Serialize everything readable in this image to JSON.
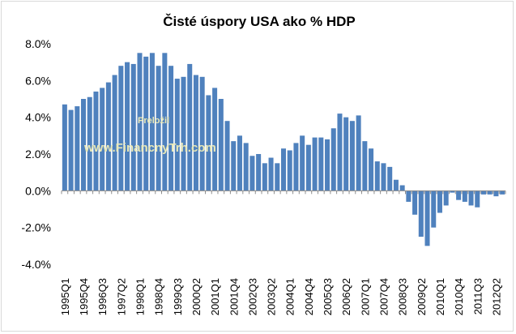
{
  "chart_data": {
    "type": "bar",
    "title": "Čisté úspory USA ako % HDP",
    "xlabel": "",
    "ylabel": "",
    "ylim": [
      -4,
      8
    ],
    "yticks": [
      "8.0%",
      "6.0%",
      "4.0%",
      "2.0%",
      "0.0%",
      "-2.0%",
      "-4.0%"
    ],
    "grid": false,
    "bar_color": "#4f81bd",
    "categories": [
      "1995Q1",
      "1995Q2",
      "1995Q3",
      "1995Q4",
      "1996Q1",
      "1996Q2",
      "1996Q3",
      "1996Q4",
      "1997Q1",
      "1997Q2",
      "1997Q3",
      "1997Q4",
      "1998Q1",
      "1998Q2",
      "1998Q3",
      "1998Q4",
      "1999Q1",
      "1999Q2",
      "1999Q3",
      "1999Q4",
      "2000Q1",
      "2000Q2",
      "2000Q3",
      "2000Q4",
      "2001Q1",
      "2001Q2",
      "2001Q3",
      "2001Q4",
      "2002Q1",
      "2002Q2",
      "2002Q3",
      "2002Q4",
      "2003Q1",
      "2003Q2",
      "2003Q3",
      "2003Q4",
      "2004Q1",
      "2004Q2",
      "2004Q3",
      "2004Q4",
      "2005Q1",
      "2005Q2",
      "2005Q3",
      "2005Q4",
      "2006Q1",
      "2006Q2",
      "2006Q3",
      "2006Q4",
      "2007Q1",
      "2007Q2",
      "2007Q3",
      "2007Q4",
      "2008Q1",
      "2008Q2",
      "2008Q3",
      "2008Q4",
      "2009Q1",
      "2009Q2",
      "2009Q3",
      "2009Q4",
      "2010Q1",
      "2010Q2",
      "2010Q3",
      "2010Q4",
      "2011Q1",
      "2011Q2",
      "2011Q3",
      "2011Q4",
      "2012Q1",
      "2012Q2",
      "2012Q3"
    ],
    "visible_tick_labels": [
      "1995Q1",
      "1995Q4",
      "1996Q3",
      "1997Q2",
      "1998Q1",
      "1998Q4",
      "1999Q3",
      "2000Q2",
      "2001Q1",
      "2001Q4",
      "2002Q3",
      "2003Q2",
      "2004Q1",
      "2004Q4",
      "2005Q3",
      "2006Q2",
      "2007Q1",
      "2007Q4",
      "2008Q3",
      "2009Q2",
      "2010Q1",
      "2010Q4",
      "2011Q3",
      "2012Q2"
    ],
    "values": [
      4.7,
      4.4,
      4.6,
      5.0,
      5.1,
      5.4,
      5.6,
      5.9,
      6.3,
      6.8,
      7.0,
      6.9,
      7.5,
      7.3,
      7.5,
      6.8,
      7.5,
      6.8,
      6.1,
      6.2,
      6.9,
      6.3,
      6.2,
      5.2,
      5.6,
      5.0,
      3.8,
      2.7,
      3.0,
      2.6,
      1.9,
      2.0,
      1.5,
      1.8,
      1.5,
      2.3,
      2.2,
      2.6,
      3.0,
      2.5,
      2.9,
      2.9,
      2.8,
      3.4,
      4.2,
      4.0,
      3.8,
      4.1,
      2.7,
      2.3,
      1.6,
      1.5,
      1.3,
      0.6,
      0.3,
      -0.6,
      -1.3,
      -2.5,
      -3.0,
      -2.0,
      -1.2,
      -0.8,
      -0.1,
      -0.5,
      -0.6,
      -0.8,
      -0.9,
      -0.2,
      -0.2,
      -0.3,
      -0.2
    ],
    "watermark": [
      "Preložil",
      "www.FinancnyTrh.com"
    ]
  }
}
